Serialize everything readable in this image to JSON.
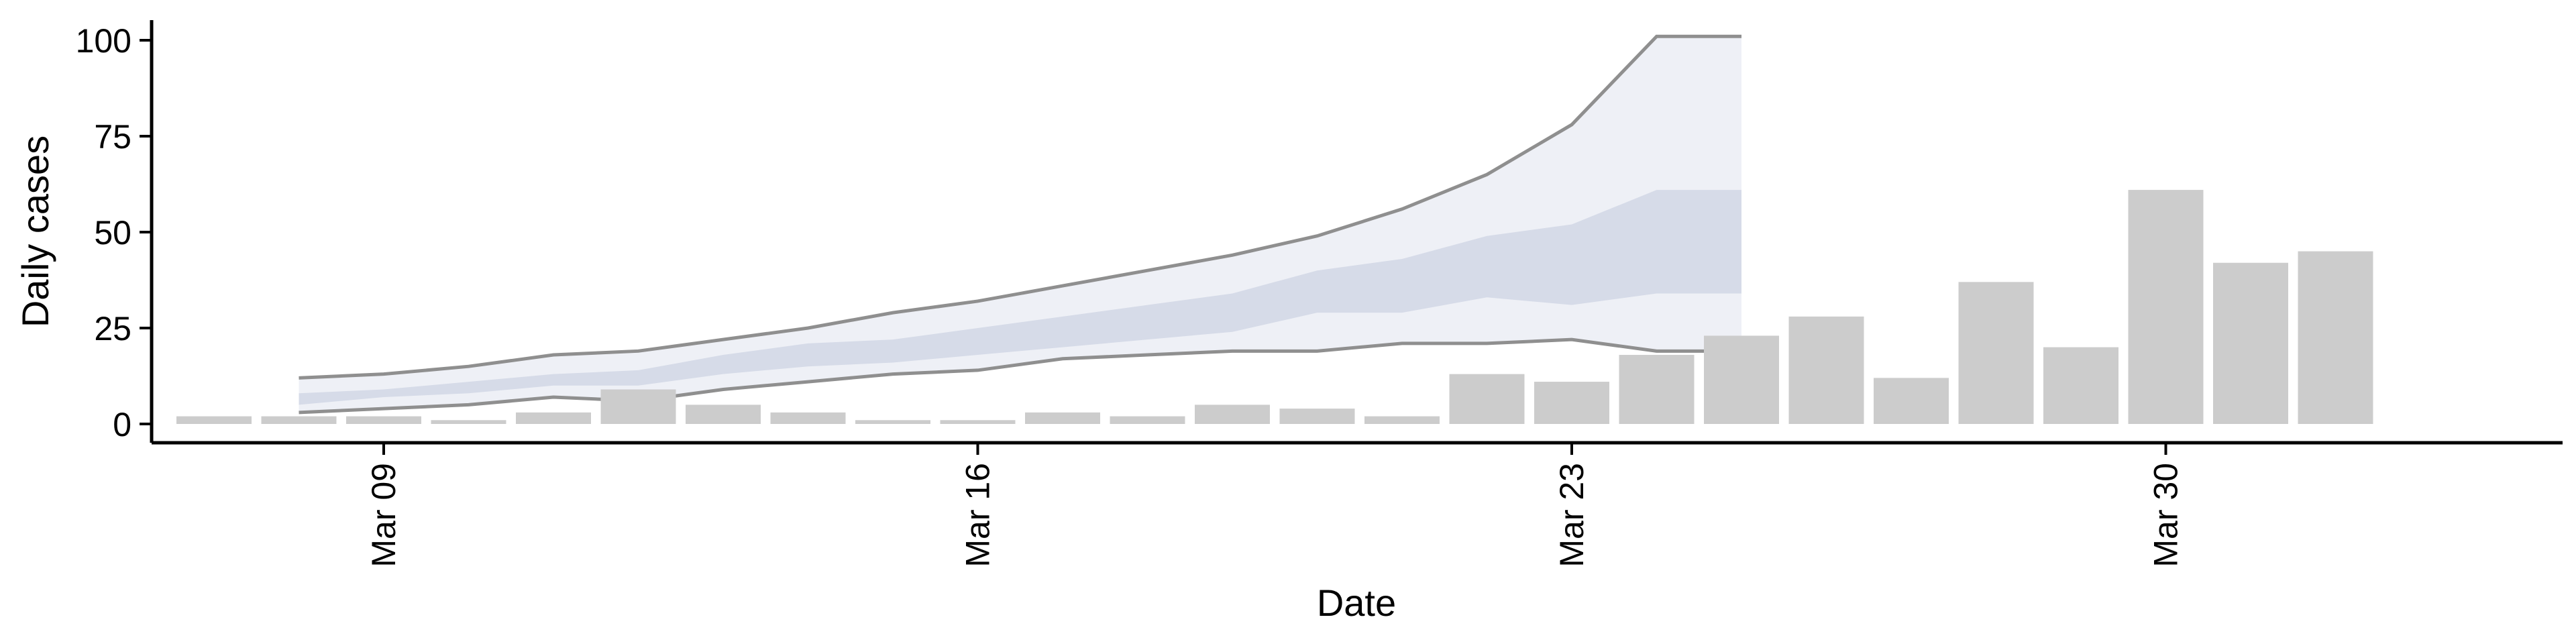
{
  "chart_data": {
    "type": "bar",
    "xlabel": "Date",
    "ylabel": "Daily cases",
    "ylim": [
      0,
      100
    ],
    "yticks": [
      0,
      25,
      50,
      75,
      100
    ],
    "xticks": [
      {
        "date": "2020-03-09",
        "label": "Mar 09"
      },
      {
        "date": "2020-03-16",
        "label": "Mar 16"
      },
      {
        "date": "2020-03-23",
        "label": "Mar 23"
      },
      {
        "date": "2020-03-30",
        "label": "Mar 30"
      }
    ],
    "grid": false,
    "legend": "none",
    "colors": {
      "bars": "#cccccc",
      "bars_faded": "#dcdcdc",
      "outer_band": "#eef0f6",
      "inner_band": "#d6dbe8",
      "band_line": "#8f8f8f",
      "axis": "#000000"
    },
    "bars": {
      "x": [
        "2020-03-07",
        "2020-03-08",
        "2020-03-09",
        "2020-03-10",
        "2020-03-11",
        "2020-03-12",
        "2020-03-13",
        "2020-03-14",
        "2020-03-15",
        "2020-03-16",
        "2020-03-17",
        "2020-03-18",
        "2020-03-19",
        "2020-03-20",
        "2020-03-21",
        "2020-03-22",
        "2020-03-23",
        "2020-03-24",
        "2020-03-25",
        "2020-03-26",
        "2020-03-27",
        "2020-03-28",
        "2020-03-29",
        "2020-03-30",
        "2020-03-31",
        "2020-04-01",
        "2020-04-02"
      ],
      "values": [
        2,
        2,
        2,
        1,
        3,
        9,
        5,
        3,
        1,
        1,
        3,
        2,
        5,
        4,
        2,
        13,
        11,
        18,
        23,
        28,
        12,
        37,
        20,
        61,
        42,
        45,
        0
      ]
    },
    "estimate": {
      "x": [
        "2020-03-08",
        "2020-03-09",
        "2020-03-10",
        "2020-03-11",
        "2020-03-12",
        "2020-03-13",
        "2020-03-14",
        "2020-03-15",
        "2020-03-16",
        "2020-03-17",
        "2020-03-18",
        "2020-03-19",
        "2020-03-20",
        "2020-03-21",
        "2020-03-22",
        "2020-03-23",
        "2020-03-24",
        "2020-03-25"
      ],
      "outer_lower": [
        3,
        4,
        5,
        7,
        6,
        9,
        11,
        13,
        14,
        17,
        18,
        19,
        19,
        21,
        21,
        22,
        19,
        19
      ],
      "outer_upper": [
        12,
        13,
        15,
        18,
        19,
        22,
        25,
        29,
        32,
        36,
        40,
        44,
        49,
        56,
        65,
        78,
        101,
        101
      ],
      "inner_lower": [
        5,
        7,
        8,
        10,
        10,
        13,
        15,
        16,
        18,
        20,
        22,
        24,
        29,
        29,
        33,
        31,
        34,
        34
      ],
      "inner_upper": [
        8,
        9,
        11,
        13,
        14,
        18,
        21,
        22,
        25,
        28,
        31,
        34,
        40,
        43,
        49,
        52,
        61,
        61
      ]
    }
  }
}
